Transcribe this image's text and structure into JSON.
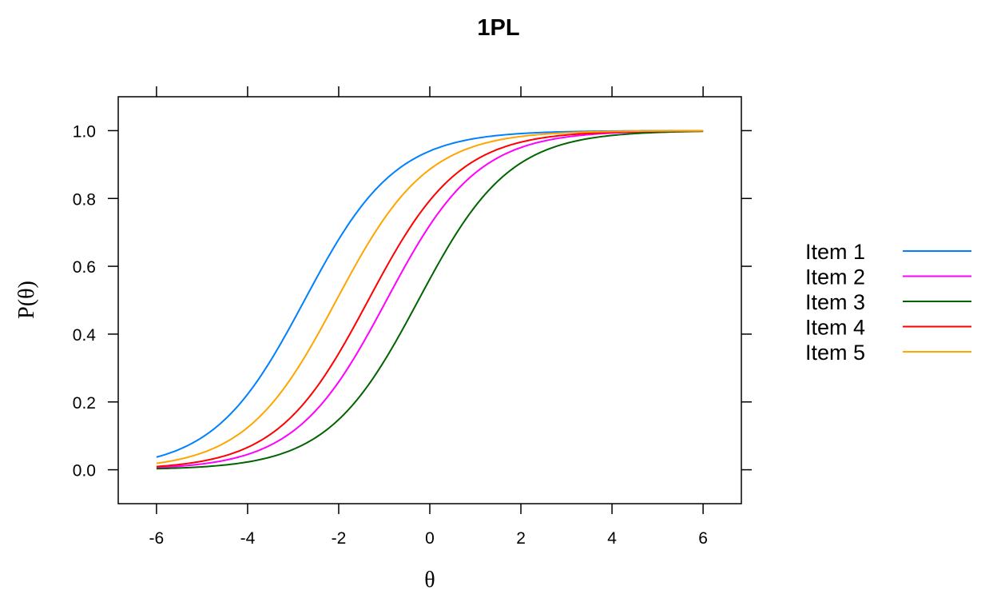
{
  "chart_data": {
    "type": "line",
    "title": "1PL",
    "xlabel": "θ",
    "ylabel": "P(θ)",
    "xlim": [
      -6.84,
      6.84
    ],
    "ylim": [
      -0.1,
      1.1
    ],
    "x_ticks": [
      "-6",
      "-4",
      "-2",
      "0",
      "2",
      "4",
      "6"
    ],
    "y_ticks": [
      "0.0",
      "0.2",
      "0.4",
      "0.6",
      "0.8",
      "1.0"
    ],
    "model": "logistic",
    "x_range": [
      -6,
      6
    ],
    "legend_position": "right",
    "grid": false,
    "series": [
      {
        "name": "Item 1",
        "color": "#0080ff",
        "difficulty": -2.75
      },
      {
        "name": "Item 2",
        "color": "#ff00ff",
        "difficulty": -0.95
      },
      {
        "name": "Item 3",
        "color": "#006400",
        "difficulty": -0.25
      },
      {
        "name": "Item 4",
        "color": "#ff0000",
        "difficulty": -1.35
      },
      {
        "name": "Item 5",
        "color": "#ffa500",
        "difficulty": -2.05
      }
    ]
  }
}
